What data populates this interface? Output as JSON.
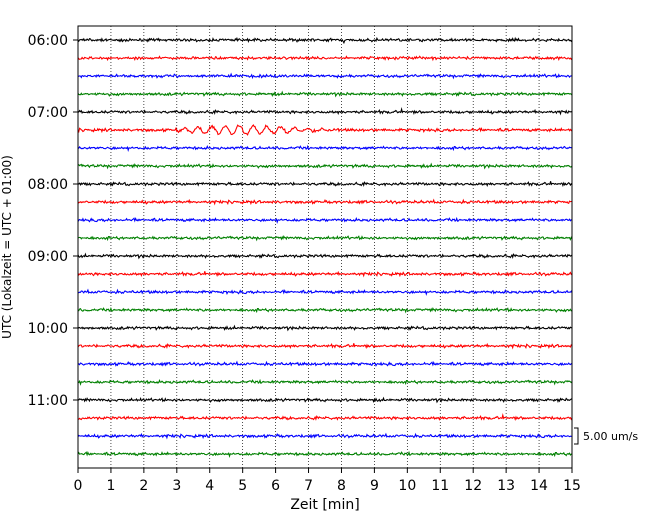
{
  "chart_data": {
    "type": "line",
    "title": "",
    "xlabel": "Zeit  [min]",
    "ylabel": "UTC (Lokalzeit = UTC + 01:00)",
    "xlim": [
      0,
      15
    ],
    "x_ticks": [
      0,
      1,
      2,
      3,
      4,
      5,
      6,
      7,
      8,
      9,
      10,
      11,
      12,
      13,
      14,
      15
    ],
    "y_tick_labels": [
      "06:00",
      "07:00",
      "08:00",
      "09:00",
      "10:00",
      "11:00"
    ],
    "grid": {
      "vertical": true,
      "style": "dotted"
    },
    "trace_start_time": "06:00",
    "trace_interval_minutes": 15,
    "trace_count": 24,
    "trace_colors": [
      "#000000",
      "#ff0000",
      "#0000ff",
      "#008000"
    ],
    "scale_bar": {
      "value": 5.0,
      "unit": "um/s",
      "label": "5.00 um/s"
    },
    "notable_events": [
      {
        "trace_time": "07:15",
        "start_min": 3.0,
        "end_min": 8.5,
        "peak_min": 4.7,
        "note": "larger amplitude signal"
      }
    ]
  }
}
